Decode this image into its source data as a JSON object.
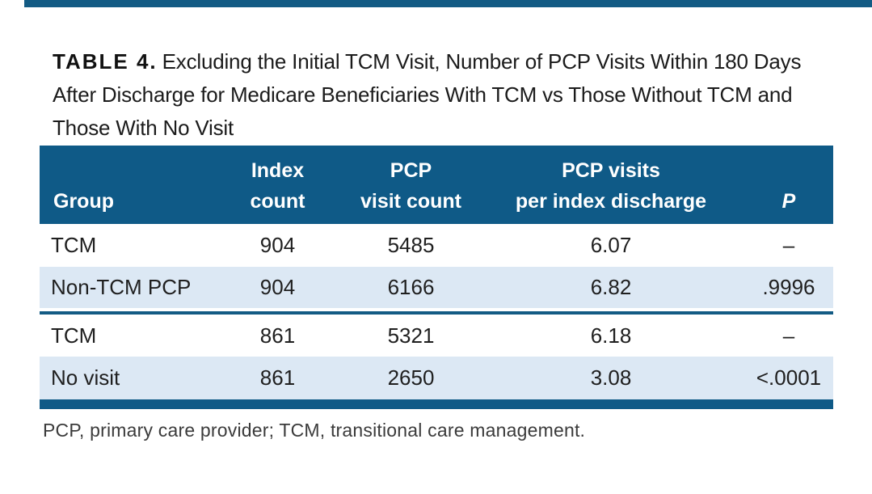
{
  "page": {
    "type": "journal-table-figure",
    "accent_color": "#0F5A87",
    "top_rule_color": "#135B84",
    "row_alt_color": "#DCE8F4",
    "text_color": "#1F1F1F"
  },
  "title": {
    "label": "TABLE 4.",
    "text": "Excluding the Initial TCM Visit, Number of PCP Visits Within 180 Days After Discharge for Medicare Beneficiaries With TCM vs Those Without TCM and Those With No Visit"
  },
  "table": {
    "columns": [
      {
        "label_lines": [
          "Group"
        ],
        "align": "left"
      },
      {
        "label_lines": [
          "Index",
          "count"
        ],
        "align": "center"
      },
      {
        "label_lines": [
          "PCP",
          "visit count"
        ],
        "align": "center"
      },
      {
        "label_lines": [
          "PCP visits",
          "per index discharge"
        ],
        "align": "center"
      },
      {
        "label_lines": [
          "P"
        ],
        "align": "center",
        "italic": true
      }
    ],
    "rows": [
      {
        "group": "TCM",
        "index_count": "904",
        "pcp_visit_count": "5485",
        "visits_per_index_discharge": "6.07",
        "p": "–"
      },
      {
        "group": "Non-TCM PCP",
        "index_count": "904",
        "pcp_visit_count": "6166",
        "visits_per_index_discharge": "6.82",
        "p": ".9996"
      },
      {
        "group": "TCM",
        "index_count": "861",
        "pcp_visit_count": "5321",
        "visits_per_index_discharge": "6.18",
        "p": "–"
      },
      {
        "group": "No visit",
        "index_count": "861",
        "pcp_visit_count": "2650",
        "visits_per_index_discharge": "3.08",
        "p": "<.0001"
      }
    ],
    "section_divider_after_row_index": 1
  },
  "footnote": "PCP, primary care provider; TCM, transitional care management."
}
